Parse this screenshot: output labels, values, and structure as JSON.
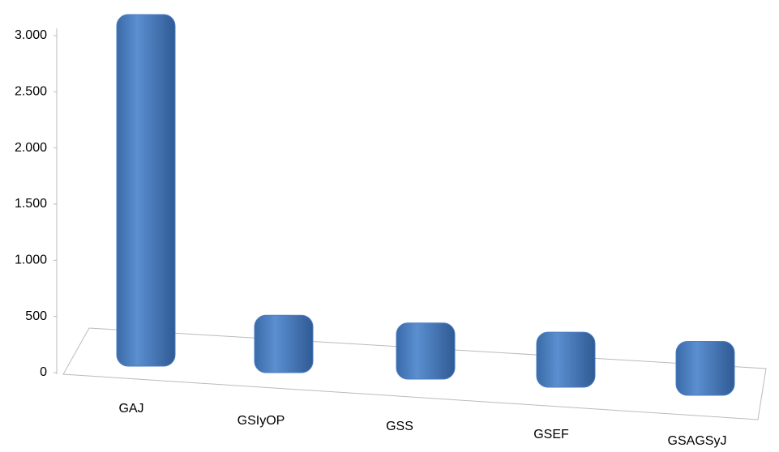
{
  "chart_data": {
    "type": "bar",
    "categories": [
      "GAJ",
      "GSIyOP",
      "GSS",
      "GSEF",
      "GSAGSyJ"
    ],
    "values": [
      3000,
      380,
      370,
      360,
      350
    ],
    "color": "#4a7ebf",
    "ylim": [
      0,
      3000
    ],
    "yticks": [
      0,
      500,
      {
        "value": 1000,
        "label": "1.000"
      },
      {
        "value": 1500,
        "label": "1.500"
      },
      {
        "value": 2000,
        "label": "2.000"
      },
      {
        "value": 2500,
        "label": "2.500"
      },
      {
        "value": 3000,
        "label": "3.000"
      }
    ]
  }
}
